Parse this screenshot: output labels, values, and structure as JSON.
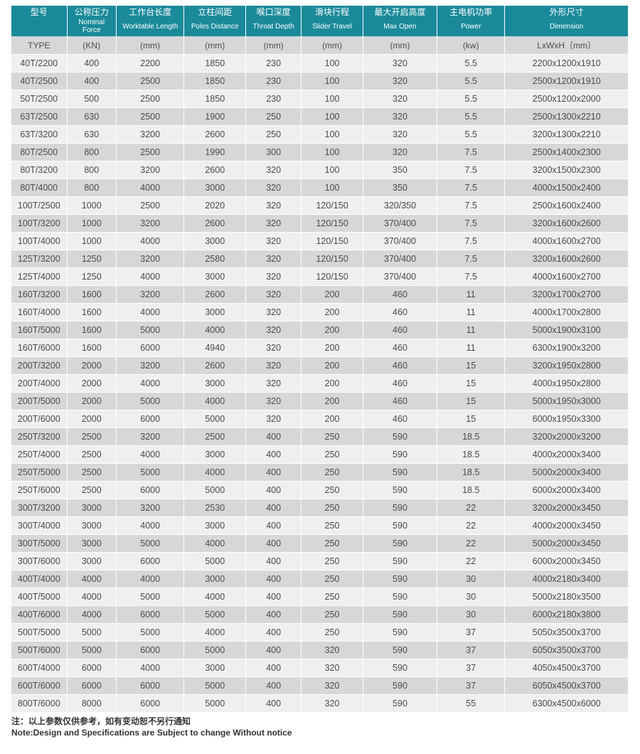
{
  "table": {
    "header_bg": "#1a8a9a",
    "header_text_color": "#ffffff",
    "unit_row_bg": "#d6d8d8",
    "row_odd_bg": "#efefef",
    "row_even_bg": "#d6d8d8",
    "text_color": "#4a4a4a",
    "border_color": "#ffffff",
    "columns": [
      {
        "cn": "型号",
        "en": "",
        "unit": "TYPE"
      },
      {
        "cn": "公称压力",
        "en": "Nominal Force",
        "unit": "(KN)"
      },
      {
        "cn": "工作台长度",
        "en": "Worktable Length",
        "unit": "(mm)"
      },
      {
        "cn": "立柱间距",
        "en": "Poles Distance",
        "unit": "(mm)"
      },
      {
        "cn": "喉口深度",
        "en": "Throat Depth",
        "unit": "(mm)"
      },
      {
        "cn": "滑块行程",
        "en": "Slider Travel",
        "unit": "(mm)"
      },
      {
        "cn": "最大开启高度",
        "en": "Max Open",
        "unit": "(mm)"
      },
      {
        "cn": "主电机功率",
        "en": "Power",
        "unit": "(kw)"
      },
      {
        "cn": "外形尺寸",
        "en": "Dimension",
        "unit": "LxWxH（mm）"
      }
    ],
    "rows": [
      [
        "40T/2200",
        "400",
        "2200",
        "1850",
        "230",
        "100",
        "320",
        "5.5",
        "2200x1200x1910"
      ],
      [
        "40T/2500",
        "400",
        "2500",
        "1850",
        "230",
        "100",
        "320",
        "5.5",
        "2500x1200x1910"
      ],
      [
        "50T/2500",
        "500",
        "2500",
        "1850",
        "230",
        "100",
        "320",
        "5.5",
        "2500x1200x2000"
      ],
      [
        "63T/2500",
        "630",
        "2500",
        "1900",
        "250",
        "100",
        "320",
        "5.5",
        "2500x1300x2210"
      ],
      [
        "63T/3200",
        "630",
        "3200",
        "2600",
        "250",
        "100",
        "320",
        "5.5",
        "3200x1300x2210"
      ],
      [
        "80T/2500",
        "800",
        "2500",
        "1990",
        "300",
        "100",
        "320",
        "7.5",
        "2500x1400x2300"
      ],
      [
        "80T/3200",
        "800",
        "3200",
        "2600",
        "320",
        "100",
        "350",
        "7.5",
        "3200x1500x2300"
      ],
      [
        "80T/4000",
        "800",
        "4000",
        "3000",
        "320",
        "100",
        "350",
        "7.5",
        "4000x1500x2400"
      ],
      [
        "100T/2500",
        "1000",
        "2500",
        "2020",
        "320",
        "120/150",
        "320/350",
        "7.5",
        "2500x1600x2400"
      ],
      [
        "100T/3200",
        "1000",
        "3200",
        "2600",
        "320",
        "120/150",
        "370/400",
        "7.5",
        "3200x1600x2600"
      ],
      [
        "100T/4000",
        "1000",
        "4000",
        "3000",
        "320",
        "120/150",
        "370/400",
        "7.5",
        "4000x1600x2700"
      ],
      [
        "125T/3200",
        "1250",
        "3200",
        "2580",
        "320",
        "120/150",
        "370/400",
        "7.5",
        "3200x1600x2600"
      ],
      [
        "125T/4000",
        "1250",
        "4000",
        "3000",
        "320",
        "120/150",
        "370/400",
        "7.5",
        "4000x1600x2700"
      ],
      [
        "160T/3200",
        "1600",
        "3200",
        "2600",
        "320",
        "200",
        "460",
        "11",
        "3200x1700x2700"
      ],
      [
        "160T/4000",
        "1600",
        "4000",
        "3000",
        "320",
        "200",
        "460",
        "11",
        "4000x1700x2800"
      ],
      [
        "160T/5000",
        "1600",
        "5000",
        "4000",
        "320",
        "200",
        "460",
        "11",
        "5000x1900x3100"
      ],
      [
        "160T/6000",
        "1600",
        "6000",
        "4940",
        "320",
        "200",
        "460",
        "11",
        "6300x1900x3200"
      ],
      [
        "200T/3200",
        "2000",
        "3200",
        "2600",
        "320",
        "200",
        "460",
        "15",
        "3200x1950x2800"
      ],
      [
        "200T/4000",
        "2000",
        "4000",
        "3000",
        "320",
        "200",
        "460",
        "15",
        "4000x1950x2800"
      ],
      [
        "200T/5000",
        "2000",
        "5000",
        "4000",
        "320",
        "200",
        "460",
        "15",
        "5000x1950x3000"
      ],
      [
        "200T/6000",
        "2000",
        "6000",
        "5000",
        "320",
        "200",
        "460",
        "15",
        "6000x1950x3300"
      ],
      [
        "250T/3200",
        "2500",
        "3200",
        "2500",
        "400",
        "250",
        "590",
        "18.5",
        "3200x2000x3200"
      ],
      [
        "250T/4000",
        "2500",
        "4000",
        "3000",
        "400",
        "250",
        "590",
        "18.5",
        "4000x2000x3400"
      ],
      [
        "250T/5000",
        "2500",
        "5000",
        "4000",
        "400",
        "250",
        "590",
        "18.5",
        "5000x2000x3400"
      ],
      [
        "250T/6000",
        "2500",
        "6000",
        "5000",
        "400",
        "250",
        "590",
        "18.5",
        "6000x2000x3400"
      ],
      [
        "300T/3200",
        "3000",
        "3200",
        "2530",
        "400",
        "250",
        "590",
        "22",
        "3200x2000x3450"
      ],
      [
        "300T/4000",
        "3000",
        "4000",
        "3000",
        "400",
        "250",
        "590",
        "22",
        "4000x2000x3450"
      ],
      [
        "300T/5000",
        "3000",
        "5000",
        "4000",
        "400",
        "250",
        "590",
        "22",
        "5000x2000x3450"
      ],
      [
        "300T/6000",
        "3000",
        "6000",
        "5000",
        "400",
        "250",
        "590",
        "22",
        "6000x2000x3450"
      ],
      [
        "400T/4000",
        "4000",
        "4000",
        "3000",
        "400",
        "250",
        "590",
        "30",
        "4000x2180x3400"
      ],
      [
        "400T/5000",
        "4000",
        "5000",
        "4000",
        "400",
        "250",
        "590",
        "30",
        "5000x2180x3500"
      ],
      [
        "400T/6000",
        "4000",
        "6000",
        "5000",
        "400",
        "250",
        "590",
        "30",
        "6000x2180x3800"
      ],
      [
        "500T/5000",
        "5000",
        "5000",
        "4000",
        "400",
        "250",
        "590",
        "37",
        "5050x3500x3700"
      ],
      [
        "500T/6000",
        "5000",
        "6000",
        "5000",
        "400",
        "320",
        "590",
        "37",
        "6050x3500x3700"
      ],
      [
        "600T/4000",
        "6000",
        "4000",
        "3000",
        "400",
        "320",
        "590",
        "37",
        "4050x4500x3700"
      ],
      [
        "600T/6000",
        "6000",
        "6000",
        "5000",
        "400",
        "320",
        "590",
        "37",
        "6050x4500x3700"
      ],
      [
        "800T/6000",
        "8000",
        "6000",
        "5000",
        "400",
        "320",
        "590",
        "55",
        "6300x4500x6000"
      ]
    ]
  },
  "footnote": {
    "line1": "注：以上参数仅供参考，如有变动恕不另行通知",
    "line2": "Note:Design and Specifications are Subject to change Without notice"
  }
}
